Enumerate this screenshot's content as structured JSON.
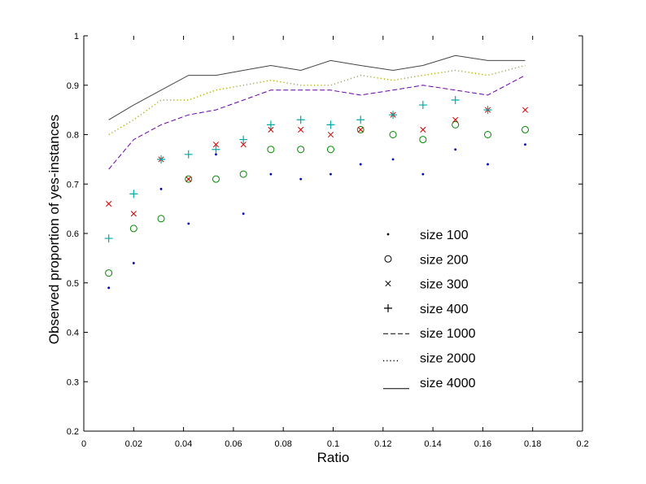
{
  "chart_data": {
    "type": "scatter",
    "title": "",
    "xlabel": "Ratio",
    "ylabel": "Observed proportion of yes-instances",
    "xlim": [
      0,
      0.2
    ],
    "ylim": [
      0.2,
      1
    ],
    "xticks": [
      0,
      0.02,
      0.04,
      0.06,
      0.08,
      0.1,
      0.12,
      0.14,
      0.16,
      0.18,
      0.2
    ],
    "yticks": [
      0.2,
      0.3,
      0.4,
      0.5,
      0.6,
      0.7,
      0.8,
      0.9,
      1
    ],
    "xtick_labels": [
      "0",
      "0.02",
      "0.04",
      "0.06",
      "0.08",
      "0.1",
      "0.12",
      "0.14",
      "0.16",
      "0.18",
      "0.2"
    ],
    "ytick_labels": [
      "0.2",
      "0.3",
      "0.4",
      "0.5",
      "0.6",
      "0.7",
      "0.8",
      "0.9",
      "1"
    ],
    "grid": false,
    "legend_position": "lower-right inside",
    "x": [
      0.01,
      0.02,
      0.031,
      0.042,
      0.053,
      0.064,
      0.075,
      0.087,
      0.099,
      0.111,
      0.124,
      0.136,
      0.149,
      0.162,
      0.177
    ],
    "series": [
      {
        "name": "size 100",
        "marker": ".",
        "style": "marker",
        "color": "#0000aa",
        "values": [
          0.49,
          0.54,
          0.69,
          0.62,
          0.76,
          0.64,
          0.72,
          0.71,
          0.72,
          0.74,
          0.75,
          0.72,
          0.77,
          0.74,
          0.78
        ]
      },
      {
        "name": "size 200",
        "marker": "o",
        "style": "marker",
        "color": "#008800",
        "values": [
          0.52,
          0.61,
          0.63,
          0.71,
          0.71,
          0.72,
          0.77,
          0.77,
          0.77,
          0.81,
          0.8,
          0.79,
          0.82,
          0.8,
          0.81
        ]
      },
      {
        "name": "size 300",
        "marker": "x",
        "style": "marker",
        "color": "#cc0000",
        "values": [
          0.66,
          0.64,
          0.75,
          0.71,
          0.78,
          0.78,
          0.81,
          0.81,
          0.8,
          0.81,
          0.84,
          0.81,
          0.83,
          0.85,
          0.85
        ]
      },
      {
        "name": "size 400",
        "marker": "+",
        "style": "marker",
        "color": "#00aaaa",
        "values": [
          0.59,
          0.68,
          0.75,
          0.76,
          0.77,
          0.79,
          0.82,
          0.83,
          0.82,
          0.83,
          0.84,
          0.86,
          0.87,
          0.85,
          null
        ]
      },
      {
        "name": "size 1000",
        "marker": "---",
        "style": "dash",
        "color": "#6600aa",
        "values": [
          0.73,
          0.79,
          0.82,
          0.84,
          0.85,
          0.87,
          0.89,
          0.89,
          0.89,
          0.88,
          0.89,
          0.9,
          0.89,
          0.88,
          0.92
        ]
      },
      {
        "name": "size 2000",
        "marker": "...",
        "style": "dot",
        "color": "#aaaa00",
        "values": [
          0.8,
          0.83,
          0.87,
          0.87,
          0.89,
          0.9,
          0.91,
          0.9,
          0.9,
          0.92,
          0.91,
          0.92,
          0.93,
          0.92,
          0.94
        ]
      },
      {
        "name": "size 4000",
        "marker": "___",
        "style": "solid",
        "color": "#444444",
        "values": [
          0.83,
          0.86,
          0.89,
          0.92,
          0.92,
          0.93,
          0.94,
          0.93,
          0.95,
          0.94,
          0.93,
          0.94,
          0.96,
          0.95,
          0.95
        ]
      }
    ]
  }
}
